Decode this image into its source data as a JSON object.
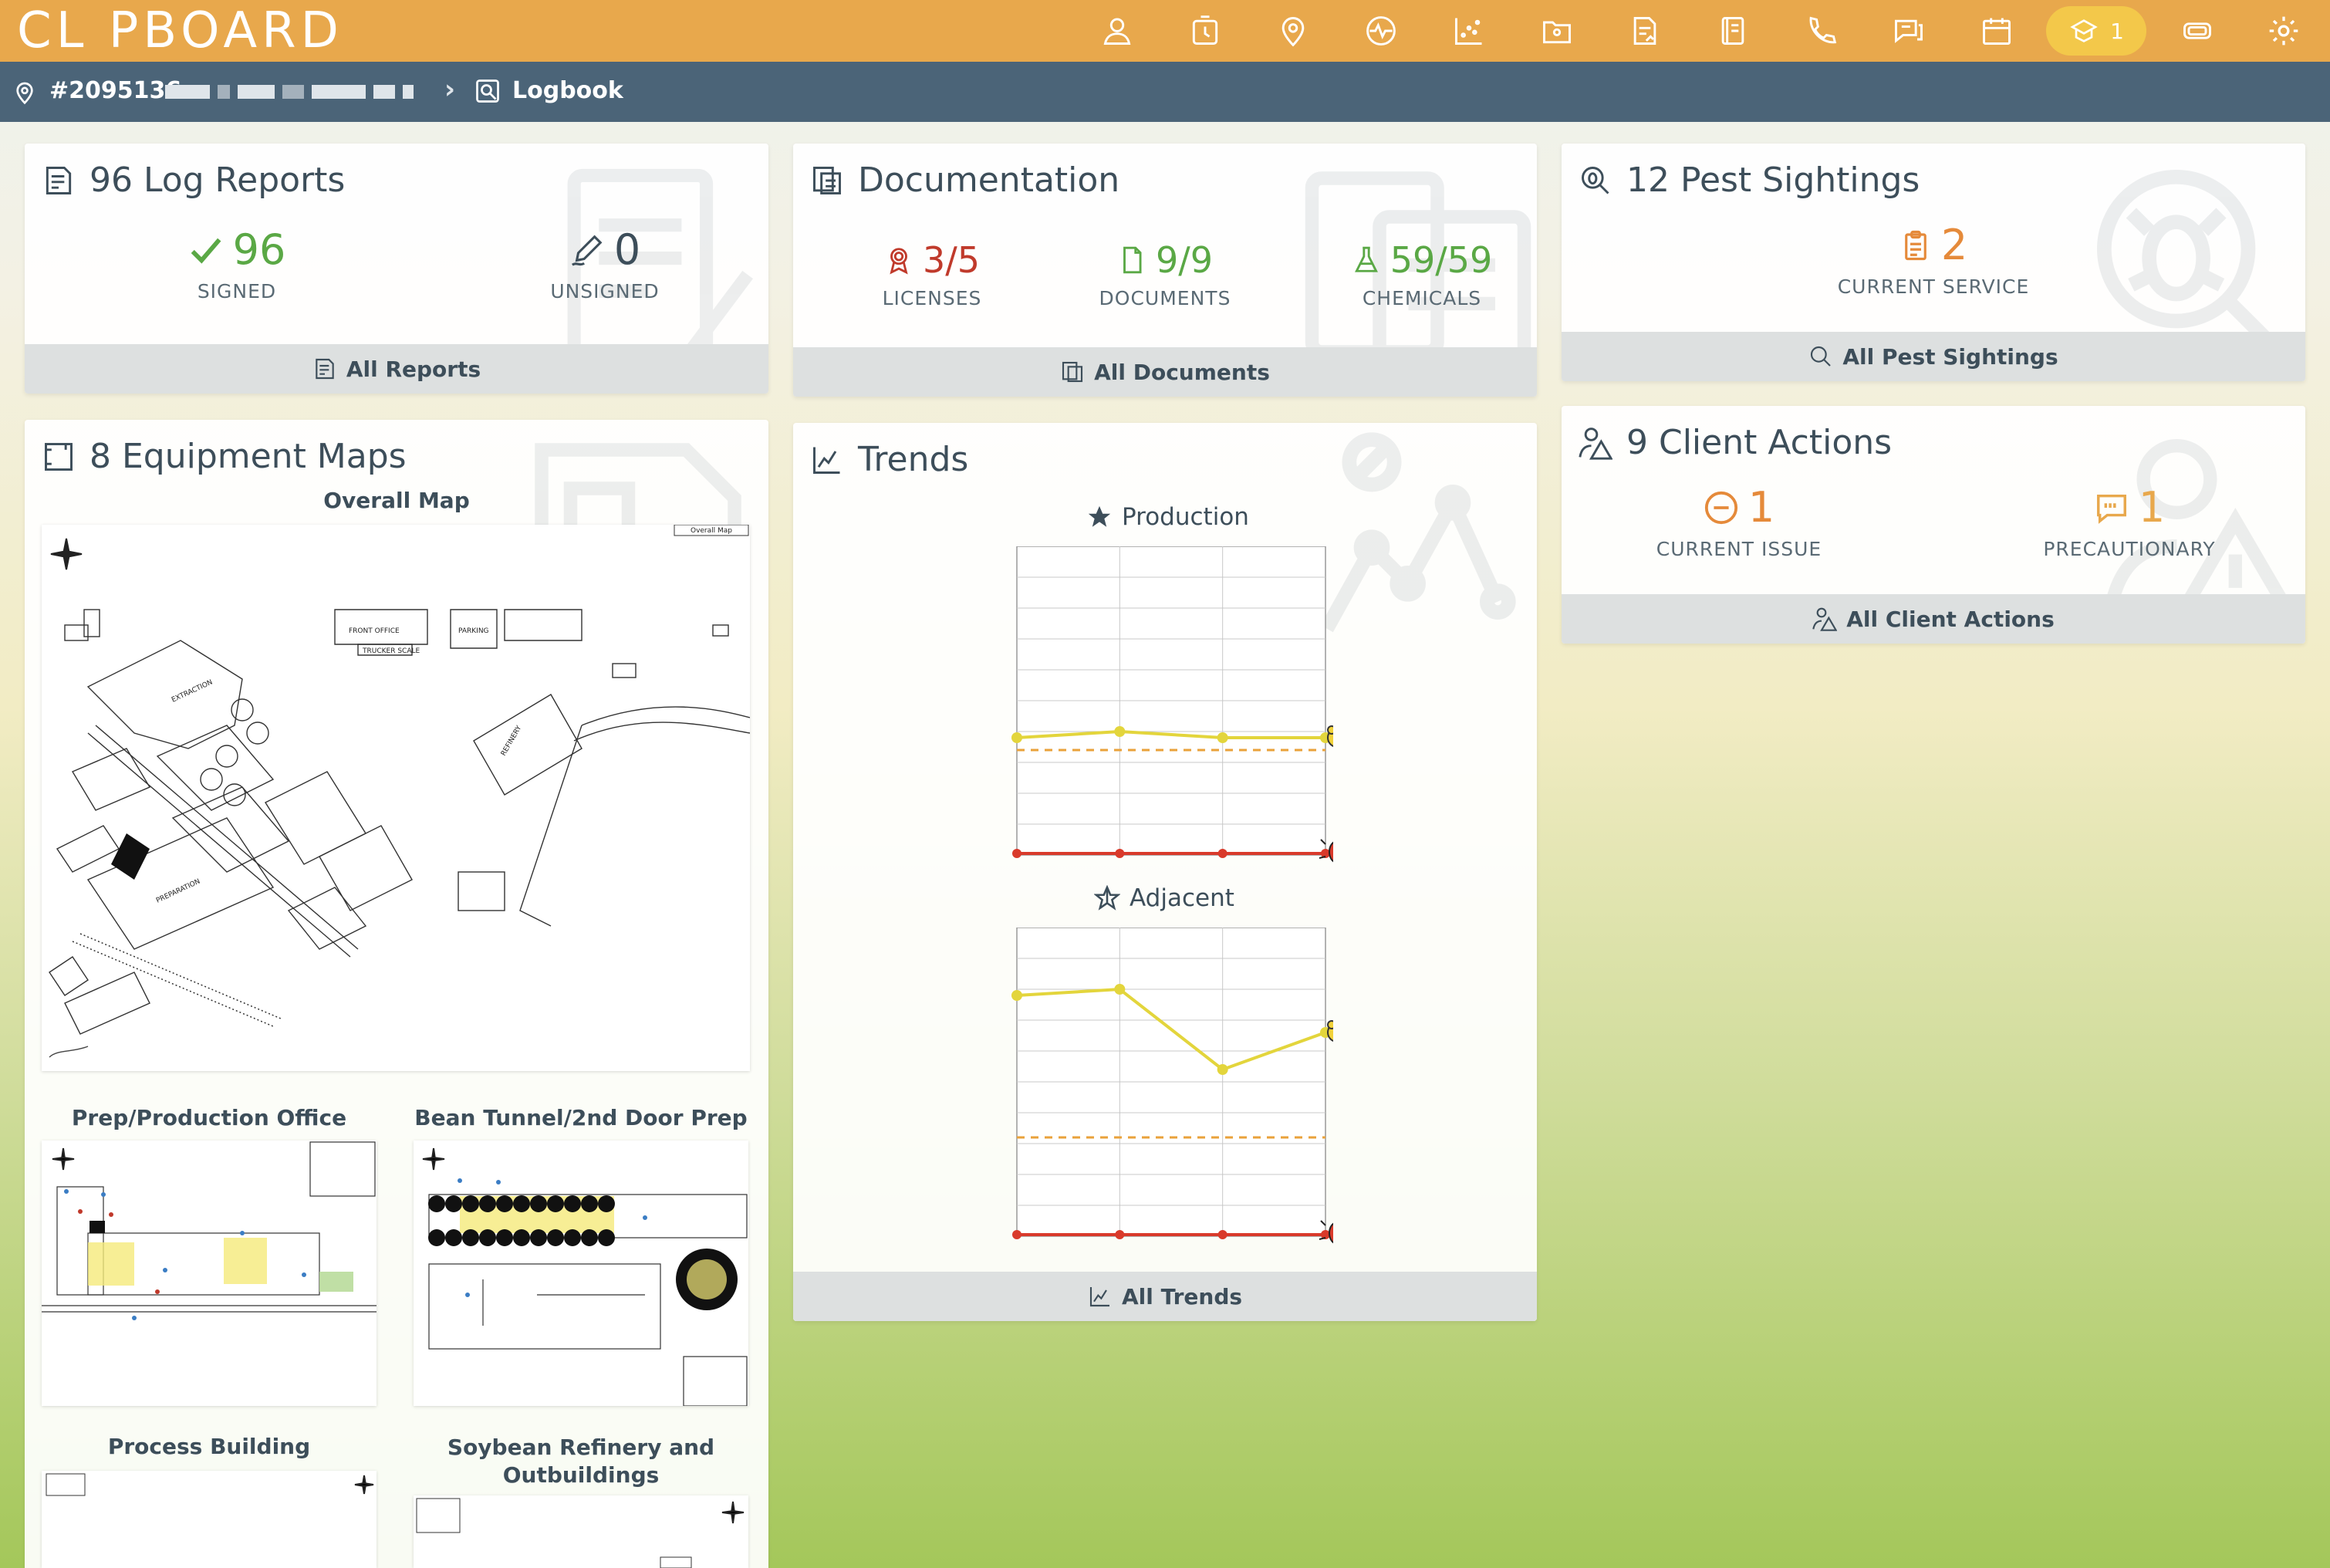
{
  "app": {
    "logo_text": "CL PBOARD",
    "nav_pill_count": "1"
  },
  "breadcrumb": {
    "account": "#2095136",
    "separator": "›",
    "page": "Logbook"
  },
  "log_reports": {
    "title": "96 Log Reports",
    "signed_value": "96",
    "signed_label": "SIGNED",
    "unsigned_value": "0",
    "unsigned_label": "UNSIGNED",
    "footer": "All Reports"
  },
  "documentation": {
    "title": "Documentation",
    "licenses_value": "3/5",
    "licenses_label": "LICENSES",
    "documents_value": "9/9",
    "documents_label": "DOCUMENTS",
    "chemicals_value": "59/59",
    "chemicals_label": "CHEMICALS",
    "footer": "All Documents"
  },
  "pest_sightings": {
    "title": "12 Pest Sightings",
    "current_value": "2",
    "current_label": "CURRENT SERVICE",
    "footer": "All Pest Sightings"
  },
  "client_actions": {
    "title": "9 Client Actions",
    "issue_value": "1",
    "issue_label": "CURRENT ISSUE",
    "precaution_value": "1",
    "precaution_label": "PRECAUTIONARY",
    "footer": "All Client Actions"
  },
  "equipment_maps": {
    "title": "8 Equipment Maps",
    "maps": [
      {
        "title": "Overall Map"
      },
      {
        "title": "Prep/Production Office"
      },
      {
        "title": "Bean Tunnel/2nd Door Prep"
      },
      {
        "title": "Process Building"
      },
      {
        "title": "Soybean Refinery and Outbuildings"
      }
    ],
    "overall_map_legend": "Overall Map",
    "overall_map_labels": [
      "FRONT OFFICE",
      "PARKING",
      "TRUCKER SCALE",
      "EXTRACTION",
      "PREPARATION",
      "REFINERY"
    ]
  },
  "trends": {
    "title": "Trends",
    "footer": "All Trends",
    "charts": [
      {
        "name": "Production",
        "series_a": [
          0.38,
          0.4,
          0.38,
          0.38
        ],
        "series_b": [
          0.0,
          0.0,
          0.0,
          0.0
        ],
        "threshold": 0.34
      },
      {
        "name": "Adjacent",
        "series_a": [
          0.78,
          0.8,
          0.54,
          0.66
        ],
        "series_b": [
          0.0,
          0.0,
          0.0,
          0.0
        ],
        "threshold": 0.32
      }
    ]
  },
  "colors": {
    "topbar": "#e8a84c",
    "crumbbar": "#4b6478",
    "signed": "#5aa845",
    "licenses": "#c03a2b",
    "docs": "#5aa845",
    "orange": "#e58a3a",
    "precaution": "#e8a84c",
    "trend_line": "#e3d53c",
    "trend_threshold": "#eaa23a",
    "trend_base": "#d93a2b"
  }
}
